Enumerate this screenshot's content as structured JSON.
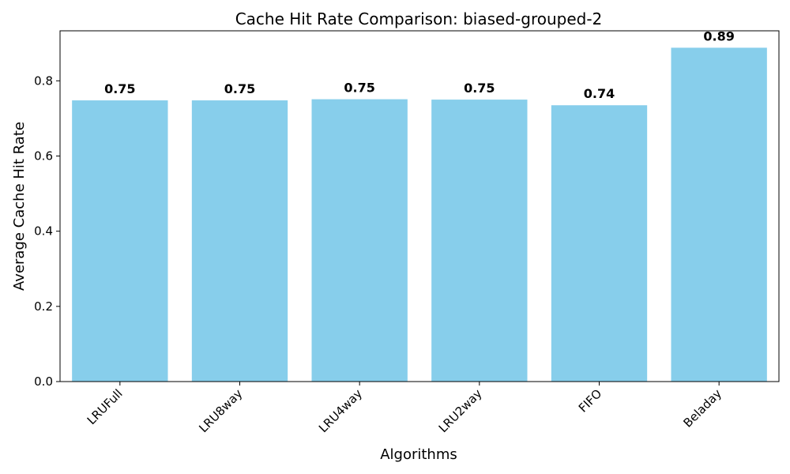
{
  "chart_data": {
    "type": "bar",
    "title": "Cache Hit Rate Comparison: biased-grouped-2",
    "xlabel": "Algorithms",
    "ylabel": "Average Cache Hit Rate",
    "categories": [
      "LRUFull",
      "LRU8way",
      "LRU4way",
      "LRU2way",
      "FIFO",
      "Beladay"
    ],
    "values": [
      0.748,
      0.748,
      0.751,
      0.75,
      0.735,
      0.888
    ],
    "data_labels": [
      "0.75",
      "0.75",
      "0.75",
      "0.75",
      "0.74",
      "0.89"
    ],
    "ylim": [
      0,
      0.933
    ],
    "yticks": [
      0.0,
      0.2,
      0.4,
      0.6,
      0.8
    ],
    "ytick_labels": [
      "0.0",
      "0.2",
      "0.4",
      "0.6",
      "0.8"
    ],
    "bar_color": "#87CEEB",
    "grid": false,
    "xtick_rotation": "45 degrees"
  }
}
